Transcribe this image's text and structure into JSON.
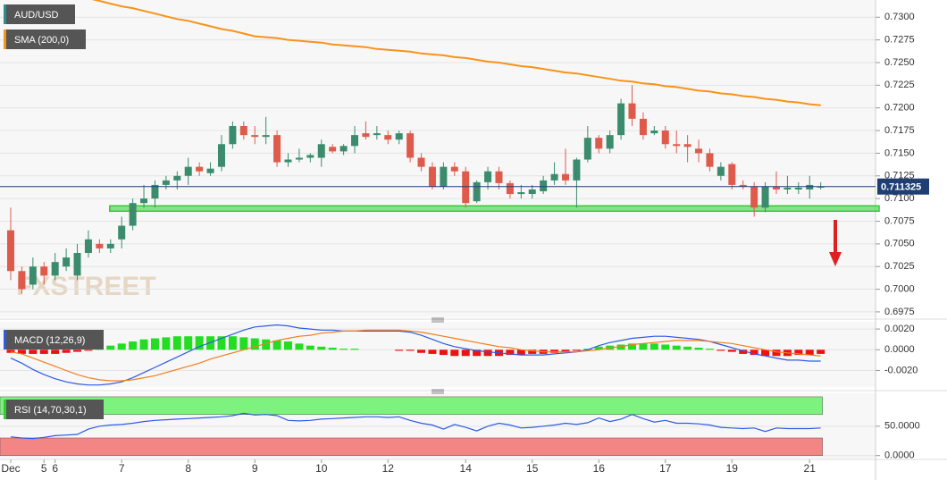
{
  "chart_data": [
    {
      "type": "candlestick",
      "label": "AUD/USD",
      "label_color": "#2a8f8f",
      "up_color": "#3b8c6e",
      "down_color": "#de5b4b",
      "categories": [
        "Dec",
        null,
        null,
        "5",
        "6",
        null,
        null,
        null,
        null,
        null,
        "7",
        null,
        null,
        null,
        null,
        null,
        "8",
        null,
        null,
        null,
        null,
        null,
        "9",
        null,
        null,
        null,
        null,
        null,
        "10",
        null,
        null,
        null,
        null,
        null,
        "12",
        null,
        null,
        null,
        null,
        null,
        null,
        "14",
        null,
        null,
        null,
        null,
        null,
        "15",
        null,
        null,
        null,
        null,
        null,
        "16",
        null,
        null,
        null,
        null,
        null,
        "17",
        null,
        null,
        null,
        null,
        null,
        "19",
        null,
        null,
        null,
        null,
        null,
        null,
        "21",
        null
      ],
      "open": [
        0.7065,
        0.702,
        0.7005,
        0.7025,
        0.7015,
        0.7025,
        0.7015,
        0.704,
        0.705,
        0.7045,
        0.7055,
        0.707,
        0.7095,
        0.71,
        0.7115,
        0.712,
        0.7125,
        0.7135,
        0.7128,
        0.7135,
        0.716,
        0.718,
        0.717,
        0.7168,
        0.717,
        0.714,
        0.7143,
        0.7145,
        0.7145,
        0.7157,
        0.7152,
        0.7158,
        0.7172,
        0.717,
        0.717,
        0.7165,
        0.7172,
        0.7145,
        0.7135,
        0.7113,
        0.7135,
        0.713,
        0.7097,
        0.7118,
        0.713,
        0.7117,
        0.7105,
        0.7105,
        0.7108,
        0.712,
        0.7127,
        0.712,
        0.7143,
        0.7167,
        0.7155,
        0.717,
        0.7205,
        0.7188,
        0.7172,
        0.7175,
        0.716,
        0.716,
        0.7155,
        0.715,
        0.7125,
        0.7138,
        0.7115,
        0.7113,
        0.709,
        0.7113,
        0.711,
        0.711,
        0.711,
        0.7112
      ],
      "high": [
        0.709,
        0.7025,
        0.7035,
        0.703,
        0.704,
        0.7045,
        0.705,
        0.7065,
        0.7055,
        0.7055,
        0.708,
        0.71,
        0.7115,
        0.712,
        0.7125,
        0.713,
        0.7145,
        0.714,
        0.714,
        0.717,
        0.7185,
        0.7185,
        0.718,
        0.719,
        0.7175,
        0.715,
        0.7155,
        0.715,
        0.7165,
        0.716,
        0.716,
        0.718,
        0.7185,
        0.718,
        0.7175,
        0.7175,
        0.7175,
        0.715,
        0.714,
        0.714,
        0.714,
        0.7135,
        0.712,
        0.7135,
        0.7135,
        0.712,
        0.7115,
        0.7115,
        0.7125,
        0.714,
        0.7155,
        0.7145,
        0.718,
        0.717,
        0.7175,
        0.721,
        0.7225,
        0.7195,
        0.718,
        0.718,
        0.7175,
        0.717,
        0.7165,
        0.7155,
        0.714,
        0.714,
        0.712,
        0.7118,
        0.7118,
        0.713,
        0.7125,
        0.7118,
        0.7125,
        0.7118
      ],
      "low": [
        0.701,
        0.6995,
        0.7,
        0.7005,
        0.701,
        0.702,
        0.701,
        0.7035,
        0.704,
        0.704,
        0.7045,
        0.7065,
        0.709,
        0.709,
        0.711,
        0.711,
        0.7115,
        0.7125,
        0.7125,
        0.713,
        0.7155,
        0.7165,
        0.716,
        0.716,
        0.7135,
        0.7135,
        0.714,
        0.714,
        0.7135,
        0.715,
        0.7148,
        0.715,
        0.7165,
        0.7165,
        0.716,
        0.716,
        0.714,
        0.713,
        0.711,
        0.711,
        0.7125,
        0.709,
        0.7095,
        0.711,
        0.711,
        0.71,
        0.71,
        0.71,
        0.7105,
        0.7115,
        0.7115,
        0.709,
        0.714,
        0.715,
        0.715,
        0.7165,
        0.718,
        0.7165,
        0.717,
        0.7155,
        0.715,
        0.714,
        0.714,
        0.713,
        0.712,
        0.711,
        0.711,
        0.708,
        0.7085,
        0.7105,
        0.7105,
        0.7105,
        0.71,
        0.711
      ],
      "close": [
        0.702,
        0.7,
        0.7025,
        0.7015,
        0.703,
        0.7035,
        0.704,
        0.7055,
        0.7045,
        0.705,
        0.707,
        0.7095,
        0.71,
        0.7115,
        0.712,
        0.7125,
        0.7135,
        0.713,
        0.7133,
        0.716,
        0.718,
        0.717,
        0.7168,
        0.717,
        0.714,
        0.7143,
        0.7145,
        0.7148,
        0.716,
        0.7152,
        0.7158,
        0.717,
        0.7168,
        0.7172,
        0.7165,
        0.7172,
        0.7145,
        0.7135,
        0.7113,
        0.7135,
        0.713,
        0.7095,
        0.7118,
        0.713,
        0.7117,
        0.7105,
        0.7107,
        0.711,
        0.712,
        0.7127,
        0.712,
        0.7143,
        0.7167,
        0.7155,
        0.717,
        0.7205,
        0.7188,
        0.717,
        0.7175,
        0.716,
        0.7158,
        0.7157,
        0.715,
        0.7135,
        0.7135,
        0.7115,
        0.7113,
        0.709,
        0.7113,
        0.711,
        0.7112,
        0.7112,
        0.7115,
        0.7113
      ],
      "series": [
        {
          "name": "SMA (200,0)",
          "color": "#f7931a",
          "values": [
            null,
            null,
            null,
            null,
            null,
            null,
            null,
            0.7321,
            0.7318,
            0.7315,
            0.7312,
            0.731,
            0.7307,
            0.7304,
            0.7301,
            0.7298,
            0.7296,
            0.7293,
            0.729,
            0.7287,
            0.7285,
            0.7282,
            0.7279,
            0.7278,
            0.7277,
            0.7275,
            0.7274,
            0.7273,
            0.7272,
            0.727,
            0.7269,
            0.7268,
            0.7267,
            0.7265,
            0.7264,
            0.7263,
            0.7262,
            0.726,
            0.7259,
            0.7258,
            0.7256,
            0.7255,
            0.7253,
            0.7251,
            0.725,
            0.7248,
            0.7246,
            0.7245,
            0.7243,
            0.7241,
            0.7239,
            0.7238,
            0.7236,
            0.7234,
            0.7232,
            0.723,
            0.7229,
            0.7227,
            0.7226,
            0.7224,
            0.7223,
            0.7221,
            0.7219,
            0.7218,
            0.7216,
            0.7215,
            0.7213,
            0.7212,
            0.721,
            0.7209,
            0.7207,
            0.7206,
            0.7204,
            0.7203
          ]
        }
      ],
      "ylim": [
        0.6969,
        0.7319
      ],
      "yticks": [
        {
          "value": 0.6975,
          "label": "0.6975"
        },
        {
          "value": 0.7,
          "label": "0.7000"
        },
        {
          "value": 0.7025,
          "label": "0.7025"
        },
        {
          "value": 0.705,
          "label": "0.7050"
        },
        {
          "value": 0.7075,
          "label": "0.7075"
        },
        {
          "value": 0.71,
          "label": "0.7100"
        },
        {
          "value": 0.7125,
          "label": "0.7125"
        },
        {
          "value": 0.715,
          "label": "0.7150"
        },
        {
          "value": 0.7175,
          "label": "0.7175"
        },
        {
          "value": 0.72,
          "label": "0.7200"
        },
        {
          "value": 0.7225,
          "label": "0.7225"
        },
        {
          "value": 0.725,
          "label": "0.7250"
        },
        {
          "value": 0.7275,
          "label": "0.7275"
        },
        {
          "value": 0.73,
          "label": "0.7300"
        }
      ],
      "grid": true,
      "last_price": 0.711325,
      "last_price_color": "#1f3f73",
      "support_level": 0.7089,
      "support_color": "#33cc33",
      "watermark": "FXSTREET"
    },
    {
      "type": "macd",
      "label": "MACD (12,26,9)",
      "label_color": "#2d5be3",
      "up_color": "#22dd22",
      "down_color": "#ee1111",
      "values": [
        -0.0003,
        -0.0004,
        -0.0004,
        -0.0004,
        -0.0004,
        -0.0003,
        -0.0002,
        -0.0001,
        0.0002,
        0.0004,
        0.0006,
        0.0008,
        0.001,
        0.0011,
        0.0012,
        0.0013,
        0.0013,
        0.0013,
        0.0013,
        0.0013,
        0.0013,
        0.0012,
        0.0011,
        0.001,
        0.0009,
        0.0008,
        0.0006,
        0.0004,
        0.0003,
        0.0002,
        0.0001,
        0.0001,
        0.0,
        0.0,
        0.0,
        -0.0001,
        -0.0001,
        -0.0003,
        -0.0004,
        -0.0005,
        -0.0006,
        -0.0006,
        -0.0006,
        -0.0006,
        -0.0006,
        -0.0005,
        -0.0005,
        -0.0004,
        -0.0004,
        -0.0003,
        -0.0002,
        -0.0001,
        0.0001,
        0.0003,
        0.0004,
        0.0005,
        0.0006,
        0.0006,
        0.0006,
        0.0005,
        0.0004,
        0.0003,
        0.0002,
        0.0001,
        -0.0001,
        -0.0002,
        -0.0004,
        -0.0005,
        -0.0006,
        -0.0006,
        -0.0006,
        -0.0005,
        -0.0005,
        -0.0004
      ],
      "series": [
        {
          "color": "#2d5be3",
          "values": [
            -0.0008,
            -0.0013,
            -0.0019,
            -0.0024,
            -0.0028,
            -0.0031,
            -0.0033,
            -0.0034,
            -0.0034,
            -0.0033,
            -0.0031,
            -0.0027,
            -0.0022,
            -0.0017,
            -0.0012,
            -0.0007,
            -0.0002,
            0.0003,
            0.0007,
            0.0011,
            0.0015,
            0.0019,
            0.0022,
            0.0023,
            0.0024,
            0.0023,
            0.0021,
            0.002,
            0.0019,
            0.0019,
            0.0018,
            0.0018,
            0.0018,
            0.0018,
            0.0018,
            0.0018,
            0.0017,
            0.0014,
            0.001,
            0.0006,
            0.0003,
            0.0001,
            -0.0001,
            -0.0002,
            -0.0003,
            -0.0004,
            -0.0005,
            -0.0005,
            -0.0005,
            -0.0004,
            -0.0003,
            -0.0002,
            0.0,
            0.0004,
            0.0007,
            0.0009,
            0.0011,
            0.0012,
            0.0013,
            0.0013,
            0.0012,
            0.0011,
            0.001,
            0.0008,
            0.0005,
            0.0002,
            -0.0001,
            -0.0004,
            -0.0006,
            -0.0008,
            -0.001,
            -0.001,
            -0.0011,
            -0.0011
          ]
        },
        {
          "color": "#f07f1c",
          "values": [
            -0.0002,
            -0.0004,
            -0.0008,
            -0.0012,
            -0.0016,
            -0.002,
            -0.0024,
            -0.0027,
            -0.0029,
            -0.003,
            -0.003,
            -0.0029,
            -0.0027,
            -0.0025,
            -0.0022,
            -0.0019,
            -0.0016,
            -0.0013,
            -0.0009,
            -0.0006,
            -0.0003,
            0.0,
            0.0003,
            0.0006,
            0.0009,
            0.0011,
            0.0013,
            0.0014,
            0.0016,
            0.0017,
            0.0018,
            0.0018,
            0.0019,
            0.0019,
            0.0019,
            0.0019,
            0.0018,
            0.0017,
            0.0015,
            0.0013,
            0.0011,
            0.0009,
            0.0007,
            0.0005,
            0.0003,
            0.0002,
            0.0,
            -0.0001,
            -0.0002,
            -0.0002,
            -0.0002,
            -0.0002,
            -0.0001,
            0.0,
            0.0002,
            0.0003,
            0.0005,
            0.0006,
            0.0007,
            0.0008,
            0.0009,
            0.0009,
            0.0009,
            0.0008,
            0.0007,
            0.0006,
            0.0004,
            0.0002,
            0.0,
            -0.0002,
            -0.0003,
            -0.0004,
            -0.0005,
            -0.0006
          ]
        }
      ],
      "ylim": [
        -0.0036,
        0.0027
      ],
      "yticks": [
        {
          "value": -0.002,
          "label": "-0.0020"
        },
        {
          "value": 0,
          "label": "0.0000"
        },
        {
          "value": 0.002,
          "label": "0.0020"
        }
      ]
    },
    {
      "type": "rsi",
      "label": "RSI (14,70,30,1)",
      "label_color": "#33cc33",
      "color": "#2d5be3",
      "values": [
        32,
        30,
        29,
        31,
        34,
        35,
        36,
        45,
        50,
        52,
        53,
        55,
        58,
        60,
        61,
        62,
        63,
        64,
        65,
        66,
        68,
        72,
        69,
        70,
        68,
        60,
        59,
        60,
        62,
        63,
        64,
        65,
        66,
        66,
        65,
        66,
        60,
        55,
        52,
        45,
        53,
        48,
        42,
        50,
        55,
        52,
        47,
        48,
        50,
        52,
        55,
        53,
        56,
        64,
        58,
        62,
        70,
        63,
        57,
        60,
        55,
        55,
        54,
        52,
        48,
        47,
        46,
        47,
        41,
        47,
        46,
        46,
        46,
        47
      ],
      "zones": [
        {
          "range": [
            70,
            100
          ],
          "color": "#7ef27e"
        },
        {
          "range": [
            0,
            30
          ],
          "color": "#f38585"
        }
      ],
      "ylim": [
        -5,
        106
      ],
      "yticks": [
        {
          "value": 0,
          "label": "0.0000"
        },
        {
          "value": 50,
          "label": "50.0000"
        }
      ]
    }
  ]
}
